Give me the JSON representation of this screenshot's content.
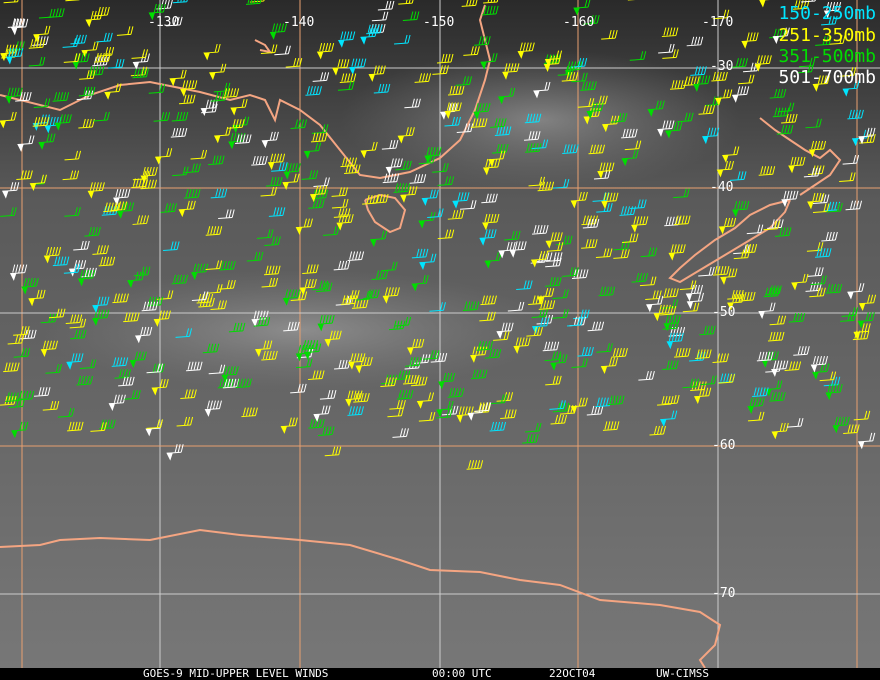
{
  "map": {
    "longitude_labels": [
      "-130",
      "-140",
      "-150",
      "-160",
      "-170"
    ],
    "latitude_labels": [
      "-30",
      "-40",
      "-50",
      "-60",
      "-70"
    ],
    "coastline_color": "#f4a582",
    "grid_color": "#e8a070",
    "background": "grayscale water vapor imagery"
  },
  "legend": [
    {
      "label": "150-250mb",
      "color": "#00e5ff"
    },
    {
      "label": "251-350mb",
      "color": "#ffff00"
    },
    {
      "label": "351-500mb",
      "color": "#00dd00"
    },
    {
      "label": "501-700mb",
      "color": "#ffffff"
    }
  ],
  "footer": {
    "satellite_product": "GOES-9 MID-UPPER LEVEL WINDS",
    "time": "00:00 UTC",
    "date": "22OCT04",
    "source": "UW-CIMSS"
  }
}
